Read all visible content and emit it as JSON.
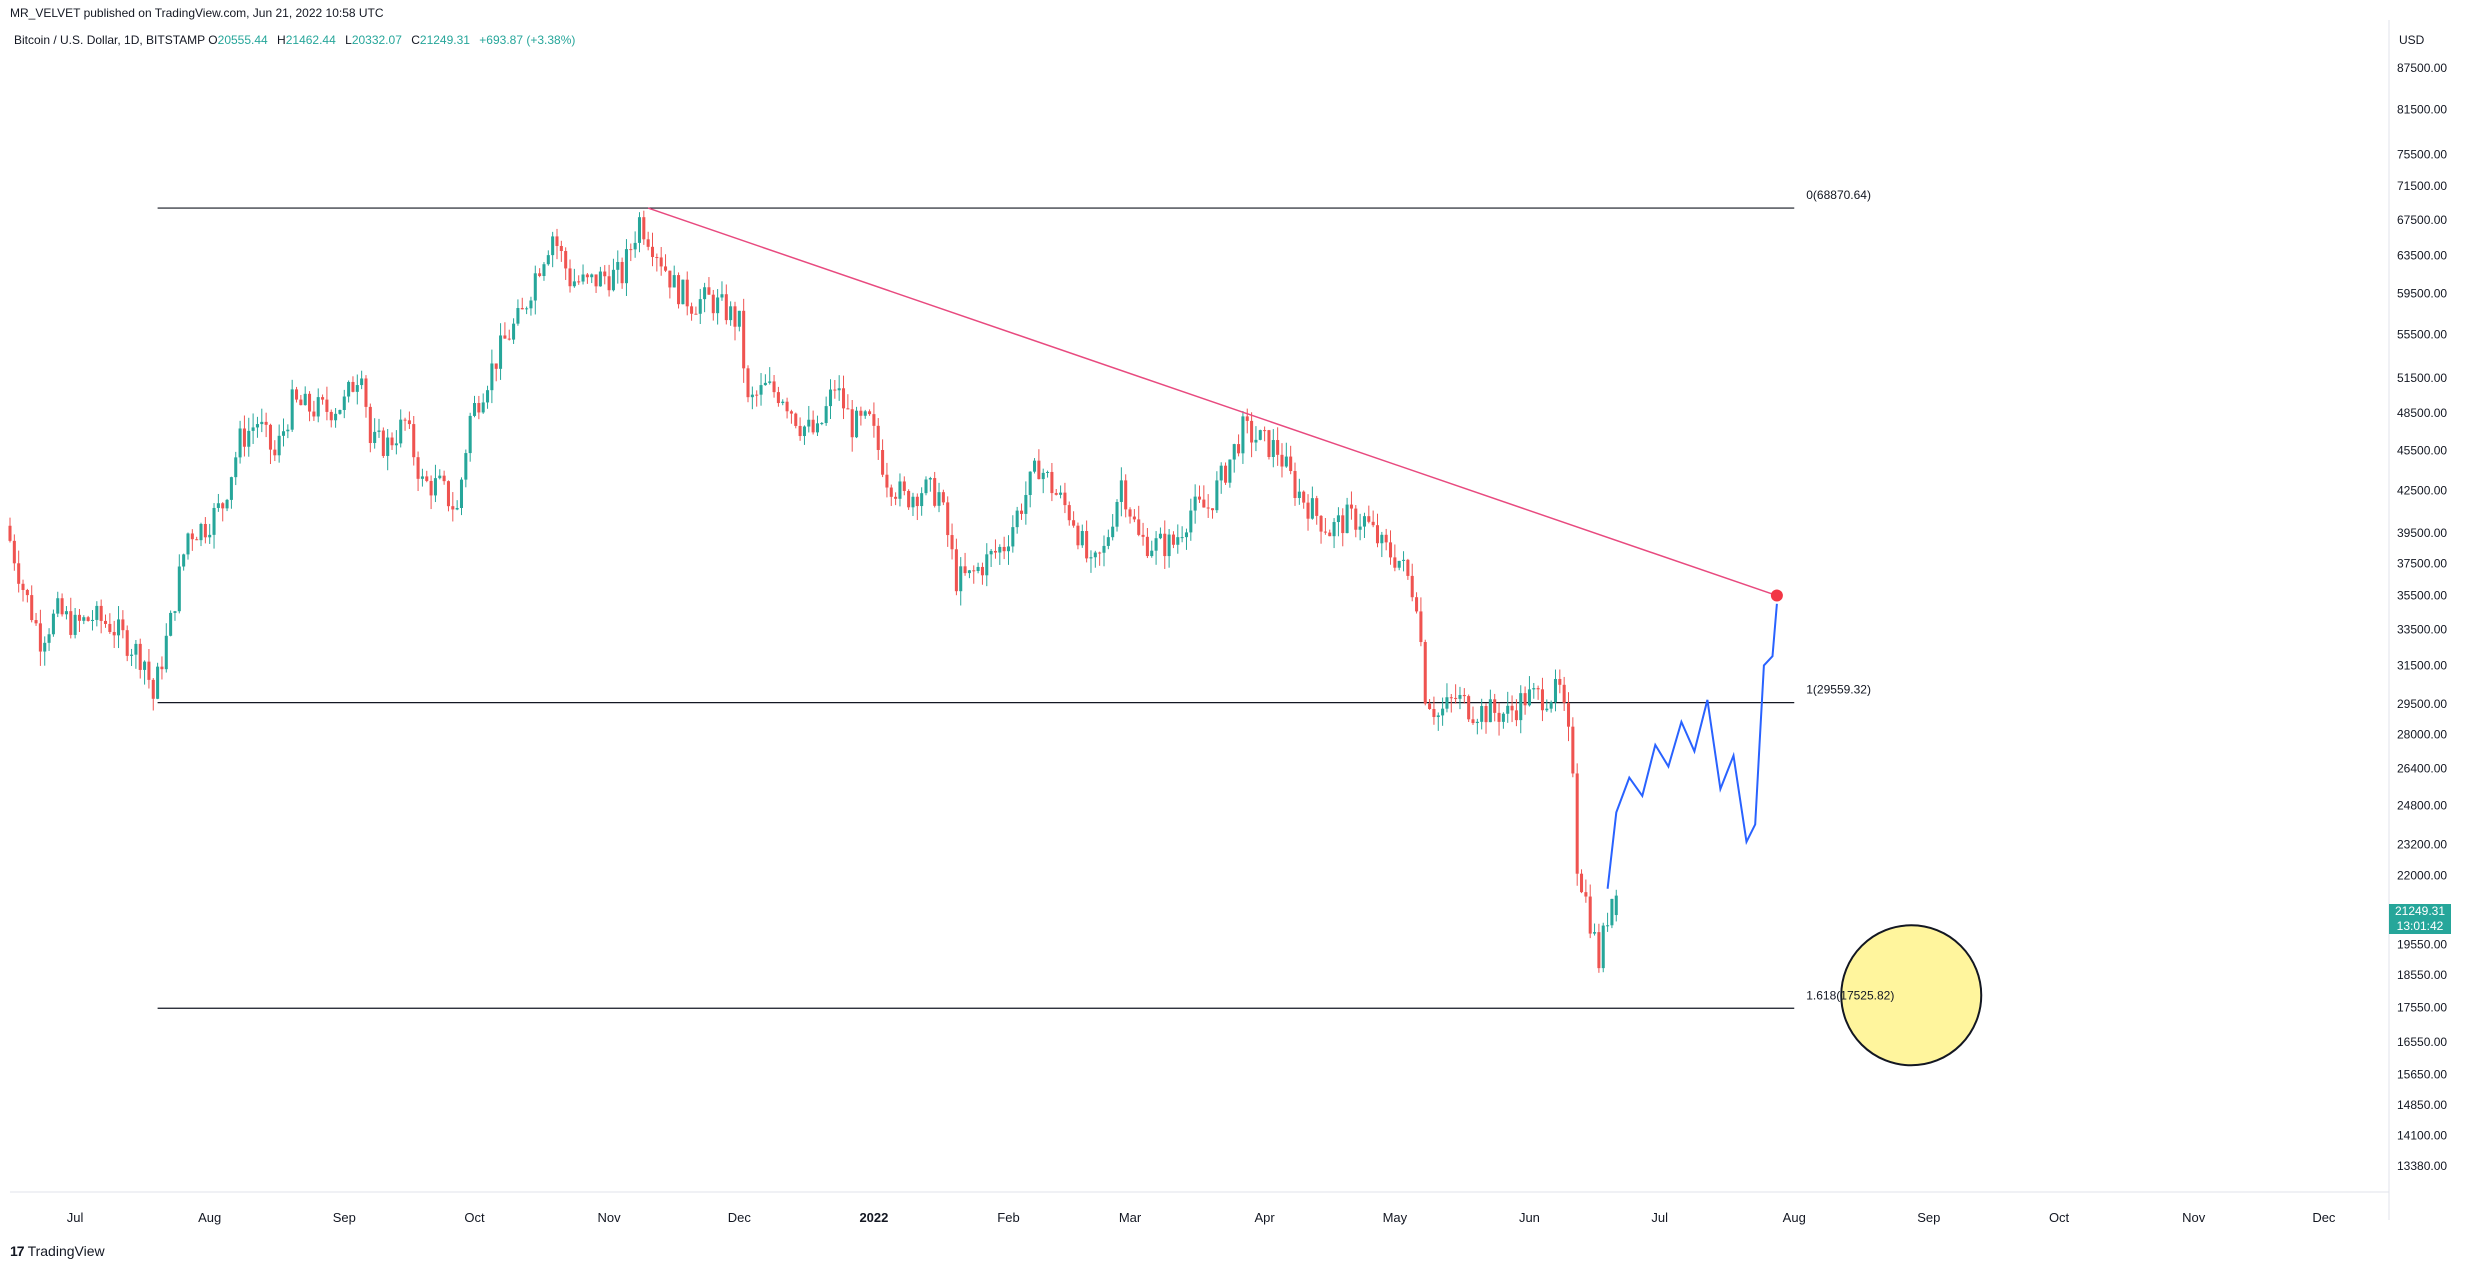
{
  "publisher": "MR_VELVET published on TradingView.com, Jun 21, 2022 10:58 UTC",
  "legend": {
    "symbol": "Bitcoin / U.S. Dollar, 1D, BITSTAMP",
    "open_label": "O",
    "open": "20555.44",
    "high_label": "H",
    "high": "21462.44",
    "low_label": "L",
    "low": "20332.07",
    "close_label": "C",
    "close": "21249.31",
    "change": "+693.87 (+3.38%)"
  },
  "price_axis_unit": "USD",
  "current_price": {
    "price": "21249.31",
    "countdown": "13:01:42"
  },
  "footer": {
    "brand": "TradingView",
    "logo_glyph": "17"
  },
  "colors": {
    "up": "#26a69a",
    "down": "#ef5350",
    "trendline": "#e84a7f",
    "projection": "#2962ff",
    "target_circle": "#fff59d",
    "target_dot": "#f23645"
  },
  "chart_data": {
    "type": "candlestick",
    "scale": "log",
    "ylim": [
      12800,
      95000
    ],
    "yticks": [
      87500,
      81500,
      75500,
      71500,
      67500,
      63500,
      59500,
      55500,
      51500,
      48500,
      45500,
      42500,
      39500,
      37500,
      35500,
      33500,
      31500,
      29500,
      28000,
      26400,
      24800,
      23200,
      22000,
      19550,
      18550,
      17550,
      16550,
      15650,
      14850,
      14100,
      13380
    ],
    "ytick_labels": [
      "87500.00",
      "81500.00",
      "75500.00",
      "71500.00",
      "67500.00",
      "63500.00",
      "59500.00",
      "55500.00",
      "51500.00",
      "48500.00",
      "45500.00",
      "42500.00",
      "39500.00",
      "37500.00",
      "35500.00",
      "33500.00",
      "31500.00",
      "29500.00",
      "28000.00",
      "26400.00",
      "24800.00",
      "23200.00",
      "22000.00",
      "19550.00",
      "18550.00",
      "17550.00",
      "16550.00",
      "15650.00",
      "14850.00",
      "14100.00",
      "13380.00"
    ],
    "xticks": [
      {
        "label": "Jul",
        "date": "2021-07-01"
      },
      {
        "label": "Aug",
        "date": "2021-08-01"
      },
      {
        "label": "Sep",
        "date": "2021-09-01"
      },
      {
        "label": "Oct",
        "date": "2021-10-01"
      },
      {
        "label": "Nov",
        "date": "2021-11-01"
      },
      {
        "label": "Dec",
        "date": "2021-12-01"
      },
      {
        "label": "2022",
        "date": "2022-01-01",
        "bold": true
      },
      {
        "label": "Feb",
        "date": "2022-02-01"
      },
      {
        "label": "Mar",
        "date": "2022-03-01"
      },
      {
        "label": "Apr",
        "date": "2022-04-01"
      },
      {
        "label": "May",
        "date": "2022-05-01"
      },
      {
        "label": "Jun",
        "date": "2022-06-01"
      },
      {
        "label": "Jul",
        "date": "2022-07-01"
      },
      {
        "label": "Aug",
        "date": "2022-08-01"
      },
      {
        "label": "Sep",
        "date": "2022-09-01"
      },
      {
        "label": "Oct",
        "date": "2022-10-01"
      },
      {
        "label": "Nov",
        "date": "2022-11-01"
      },
      {
        "label": "Dec",
        "date": "2022-12-01"
      }
    ],
    "xrange": [
      "2021-06-16",
      "2022-12-16"
    ],
    "close_path": [
      [
        "2021-06-16",
        40000
      ],
      [
        "2021-06-20",
        36000
      ],
      [
        "2021-06-24",
        33000
      ],
      [
        "2021-06-28",
        34500
      ],
      [
        "2021-07-02",
        33700
      ],
      [
        "2021-07-06",
        34200
      ],
      [
        "2021-07-10",
        33800
      ],
      [
        "2021-07-14",
        32800
      ],
      [
        "2021-07-18",
        31800
      ],
      [
        "2021-07-20",
        29800
      ],
      [
        "2021-07-24",
        33900
      ],
      [
        "2021-07-28",
        39500
      ],
      [
        "2021-08-01",
        40000
      ],
      [
        "2021-08-05",
        41500
      ],
      [
        "2021-08-09",
        46300
      ],
      [
        "2021-08-13",
        47800
      ],
      [
        "2021-08-17",
        45000
      ],
      [
        "2021-08-21",
        49300
      ],
      [
        "2021-08-25",
        48900
      ],
      [
        "2021-08-29",
        48800
      ],
      [
        "2021-09-02",
        49300
      ],
      [
        "2021-09-06",
        52700
      ],
      [
        "2021-09-08",
        46100
      ],
      [
        "2021-09-12",
        46000
      ],
      [
        "2021-09-16",
        47700
      ],
      [
        "2021-09-20",
        43000
      ],
      [
        "2021-09-24",
        42800
      ],
      [
        "2021-09-28",
        41000
      ],
      [
        "2021-10-01",
        48100
      ],
      [
        "2021-10-05",
        51500
      ],
      [
        "2021-10-09",
        54900
      ],
      [
        "2021-10-13",
        57400
      ],
      [
        "2021-10-16",
        61500
      ],
      [
        "2021-10-20",
        65900
      ],
      [
        "2021-10-24",
        61000
      ],
      [
        "2021-10-28",
        60500
      ],
      [
        "2021-11-01",
        61300
      ],
      [
        "2021-11-05",
        61400
      ],
      [
        "2021-11-09",
        67500
      ],
      [
        "2021-11-13",
        64100
      ],
      [
        "2021-11-17",
        60300
      ],
      [
        "2021-11-21",
        58600
      ],
      [
        "2021-11-25",
        58900
      ],
      [
        "2021-11-29",
        57800
      ],
      [
        "2021-12-02",
        56500
      ],
      [
        "2021-12-04",
        49200
      ],
      [
        "2021-12-08",
        50600
      ],
      [
        "2021-12-12",
        50100
      ],
      [
        "2021-12-16",
        47600
      ],
      [
        "2021-12-20",
        46700
      ],
      [
        "2021-12-24",
        50800
      ],
      [
        "2021-12-28",
        47500
      ],
      [
        "2022-01-01",
        47700
      ],
      [
        "2022-01-05",
        43500
      ],
      [
        "2022-01-09",
        41900
      ],
      [
        "2022-01-13",
        42600
      ],
      [
        "2022-01-17",
        42200
      ],
      [
        "2022-01-21",
        36500
      ],
      [
        "2022-01-24",
        36600
      ],
      [
        "2022-01-28",
        37700
      ],
      [
        "2022-02-01",
        38700
      ],
      [
        "2022-02-05",
        41500
      ],
      [
        "2022-02-09",
        44400
      ],
      [
        "2022-02-13",
        42200
      ],
      [
        "2022-02-17",
        40500
      ],
      [
        "2022-02-21",
        37000
      ],
      [
        "2022-02-24",
        38300
      ],
      [
        "2022-02-28",
        43200
      ],
      [
        "2022-03-04",
        39100
      ],
      [
        "2022-03-08",
        38700
      ],
      [
        "2022-03-12",
        38800
      ],
      [
        "2022-03-16",
        41100
      ],
      [
        "2022-03-20",
        41300
      ],
      [
        "2022-03-24",
        44000
      ],
      [
        "2022-03-28",
        47100
      ],
      [
        "2022-04-01",
        46300
      ],
      [
        "2022-04-05",
        45500
      ],
      [
        "2022-04-09",
        42700
      ],
      [
        "2022-04-13",
        41100
      ],
      [
        "2022-04-17",
        39700
      ],
      [
        "2022-04-21",
        40500
      ],
      [
        "2022-04-25",
        40400
      ],
      [
        "2022-04-29",
        38600
      ],
      [
        "2022-05-03",
        37700
      ],
      [
        "2022-05-07",
        35400
      ],
      [
        "2022-05-09",
        30100
      ],
      [
        "2022-05-12",
        28900
      ],
      [
        "2022-05-16",
        29800
      ],
      [
        "2022-05-20",
        29200
      ],
      [
        "2022-05-24",
        29100
      ],
      [
        "2022-05-28",
        29000
      ],
      [
        "2022-06-01",
        29800
      ],
      [
        "2022-06-05",
        29900
      ],
      [
        "2022-06-09",
        30100
      ],
      [
        "2022-06-12",
        26600
      ],
      [
        "2022-06-13",
        22500
      ],
      [
        "2022-06-16",
        20400
      ],
      [
        "2022-06-18",
        19000
      ],
      [
        "2022-06-20",
        20555
      ],
      [
        "2022-06-21",
        21249
      ]
    ],
    "last_candle": {
      "date": "2022-06-21",
      "open": 20555.44,
      "high": 21462.44,
      "low": 20332.07,
      "close": 21249.31
    },
    "fib_levels": [
      {
        "label": "0(68870.64)",
        "level": 0,
        "price": 68870.64
      },
      {
        "label": "1(29559.32)",
        "level": 1,
        "price": 29559.32
      },
      {
        "label": "1.618(17525.82)",
        "level": 1.618,
        "price": 17525.82
      }
    ],
    "fib_start_date": "2021-07-20",
    "fib_end_date": "2022-08-01",
    "trendline": {
      "from": [
        "2021-11-10",
        68870
      ],
      "to": [
        "2022-07-28",
        35500
      ]
    },
    "projection_path": [
      [
        "2022-06-19",
        21500
      ],
      [
        "2022-06-21",
        24500
      ],
      [
        "2022-06-24",
        26000
      ],
      [
        "2022-06-27",
        25200
      ],
      [
        "2022-06-30",
        27500
      ],
      [
        "2022-07-03",
        26500
      ],
      [
        "2022-07-06",
        28600
      ],
      [
        "2022-07-09",
        27200
      ],
      [
        "2022-07-12",
        29700
      ],
      [
        "2022-07-15",
        25500
      ],
      [
        "2022-07-18",
        27000
      ],
      [
        "2022-07-21",
        23300
      ],
      [
        "2022-07-23",
        24000
      ],
      [
        "2022-07-24",
        27500
      ],
      [
        "2022-07-25",
        31500
      ],
      [
        "2022-07-27",
        32000
      ],
      [
        "2022-07-28",
        35000
      ]
    ]
  }
}
